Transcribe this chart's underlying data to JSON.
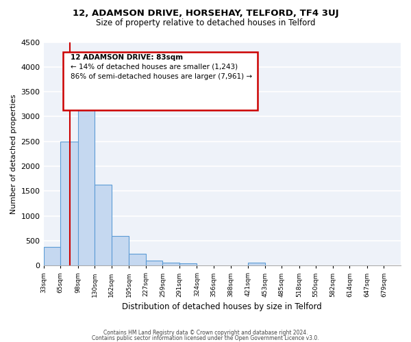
{
  "title": "12, ADAMSON DRIVE, HORSEHAY, TELFORD, TF4 3UJ",
  "subtitle": "Size of property relative to detached houses in Telford",
  "xlabel": "Distribution of detached houses by size in Telford",
  "ylabel": "Number of detached properties",
  "bar_color": "#c5d8f0",
  "bar_edge_color": "#5b9bd5",
  "bg_color": "#eef2f9",
  "grid_color": "#ffffff",
  "bin_edges": [
    33,
    65,
    98,
    130,
    162,
    195,
    227,
    259,
    291,
    324,
    356,
    388,
    421,
    453,
    485,
    518,
    550,
    582,
    614,
    647,
    679
  ],
  "bar_heights": [
    380,
    2500,
    3700,
    1630,
    600,
    240,
    100,
    65,
    50,
    0,
    0,
    0,
    60,
    0,
    0,
    0,
    0,
    0,
    0,
    0
  ],
  "x_tick_labels": [
    "33sqm",
    "65sqm",
    "98sqm",
    "130sqm",
    "162sqm",
    "195sqm",
    "227sqm",
    "259sqm",
    "291sqm",
    "324sqm",
    "356sqm",
    "388sqm",
    "421sqm",
    "453sqm",
    "485sqm",
    "518sqm",
    "550sqm",
    "582sqm",
    "614sqm",
    "647sqm",
    "679sqm"
  ],
  "ylim": [
    0,
    4500
  ],
  "yticks": [
    0,
    500,
    1000,
    1500,
    2000,
    2500,
    3000,
    3500,
    4000,
    4500
  ],
  "property_size": 83,
  "red_line_color": "#cc0000",
  "annotation_box_color": "#cc0000",
  "annotation_text_line1": "12 ADAMSON DRIVE: 83sqm",
  "annotation_text_line2": "← 14% of detached houses are smaller (1,243)",
  "annotation_text_line3": "86% of semi-detached houses are larger (7,961) →",
  "footer_line1": "Contains HM Land Registry data © Crown copyright and database right 2024.",
  "footer_line2": "Contains public sector information licensed under the Open Government Licence v3.0."
}
